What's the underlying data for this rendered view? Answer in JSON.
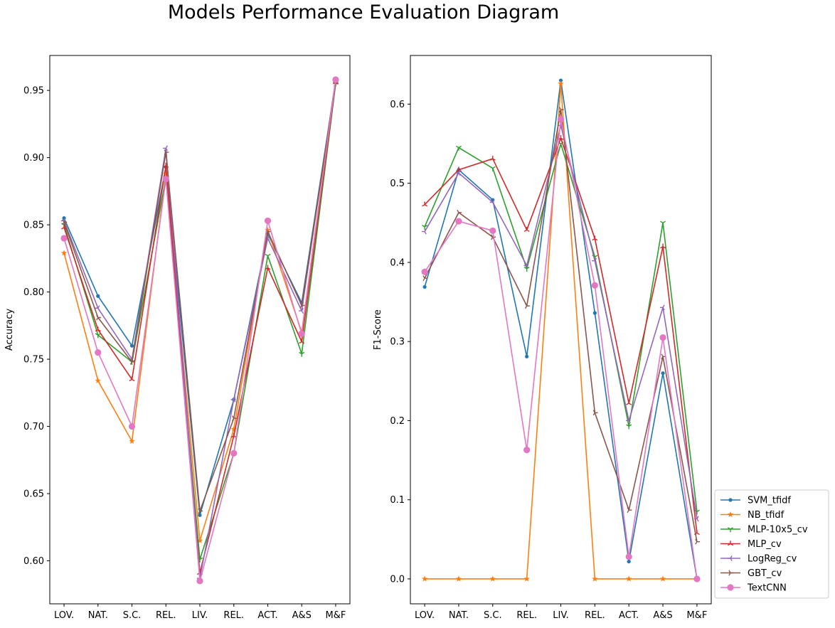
{
  "figure": {
    "title": "Models Performance Evaluation Diagram"
  },
  "colors": {
    "SVM_tfidf": "#1f77b4",
    "NB_tfidf": "#ff7f0e",
    "MLP-10x5_cv": "#2ca02c",
    "MLP_cv": "#d62728",
    "LogReg_cv": "#9467bd",
    "GBT_cv": "#8c564b",
    "TextCNN": "#e377c2"
  },
  "legend": {
    "placement": "lower-right outside",
    "entries": [
      "SVM_tfidf",
      "NB_tfidf",
      "MLP-10x5_cv",
      "MLP_cv",
      "LogReg_cv",
      "GBT_cv",
      "TextCNN"
    ]
  },
  "chart_data": [
    {
      "type": "line",
      "title": "",
      "xlabel": "",
      "ylabel": "Accuracy",
      "categories": [
        "LOV.",
        "NAT.",
        "S.C.",
        "REL.",
        "LIV.",
        "REL.",
        "ACT.",
        "A&S",
        "M&F"
      ],
      "ylim": [
        0.568,
        0.976
      ],
      "yticks": [
        0.6,
        0.65,
        0.7,
        0.75,
        0.8,
        0.85,
        0.9,
        0.95
      ],
      "ytick_labels": [
        "0.60",
        "0.65",
        "0.70",
        "0.75",
        "0.80",
        "0.85",
        "0.90",
        "0.95"
      ],
      "grid": false,
      "series": [
        {
          "name": "SVM_tfidf",
          "marker": "dot",
          "values": [
            0.855,
            0.797,
            0.76,
            0.893,
            0.634,
            0.72,
            0.843,
            0.792,
            0.957
          ]
        },
        {
          "name": "NB_tfidf",
          "marker": "star",
          "values": [
            0.829,
            0.734,
            0.689,
            0.888,
            0.615,
            0.698,
            0.846,
            0.77,
            0.958
          ]
        },
        {
          "name": "MLP-10x5_cv",
          "marker": "tri_down",
          "values": [
            0.85,
            0.768,
            0.748,
            0.885,
            0.601,
            0.68,
            0.827,
            0.754,
            0.955
          ]
        },
        {
          "name": "MLP_cv",
          "marker": "tri_up",
          "values": [
            0.848,
            0.772,
            0.735,
            0.894,
            0.591,
            0.693,
            0.818,
            0.763,
            0.956
          ]
        },
        {
          "name": "LogReg_cv",
          "marker": "tri_left",
          "values": [
            0.853,
            0.788,
            0.75,
            0.907,
            0.587,
            0.72,
            0.84,
            0.786,
            0.958
          ]
        },
        {
          "name": "GBT_cv",
          "marker": "tri_right",
          "values": [
            0.852,
            0.781,
            0.748,
            0.904,
            0.637,
            0.706,
            0.845,
            0.79,
            0.955
          ]
        },
        {
          "name": "TextCNN",
          "marker": "circle",
          "values": [
            0.84,
            0.755,
            0.7,
            0.884,
            0.585,
            0.68,
            0.853,
            0.769,
            0.958
          ]
        }
      ]
    },
    {
      "type": "line",
      "title": "",
      "xlabel": "",
      "ylabel": "F1-Score",
      "categories": [
        "LOV.",
        "NAT.",
        "S.C.",
        "REL.",
        "LIV.",
        "REL.",
        "ACT.",
        "A&S",
        "M&F"
      ],
      "ylim": [
        -0.0315,
        0.6615
      ],
      "yticks": [
        0.0,
        0.1,
        0.2,
        0.3,
        0.4,
        0.5,
        0.6
      ],
      "ytick_labels": [
        "0.0",
        "0.1",
        "0.2",
        "0.3",
        "0.4",
        "0.5",
        "0.6"
      ],
      "grid": false,
      "series": [
        {
          "name": "SVM_tfidf",
          "marker": "dot",
          "values": [
            0.369,
            0.517,
            0.479,
            0.281,
            0.63,
            0.336,
            0.022,
            0.26,
            0.0
          ]
        },
        {
          "name": "NB_tfidf",
          "marker": "star",
          "values": [
            0.0,
            0.0,
            0.0,
            0.0,
            0.626,
            0.0,
            0.0,
            0.0,
            0.0
          ]
        },
        {
          "name": "MLP-10x5_cv",
          "marker": "tri_down",
          "values": [
            0.445,
            0.545,
            0.519,
            0.392,
            0.55,
            0.407,
            0.193,
            0.45,
            0.085
          ]
        },
        {
          "name": "MLP_cv",
          "marker": "tri_up",
          "values": [
            0.473,
            0.517,
            0.531,
            0.441,
            0.557,
            0.43,
            0.222,
            0.42,
            0.058
          ]
        },
        {
          "name": "LogReg_cv",
          "marker": "tri_left",
          "values": [
            0.439,
            0.513,
            0.476,
            0.396,
            0.573,
            0.402,
            0.2,
            0.343,
            0.076
          ]
        },
        {
          "name": "GBT_cv",
          "marker": "tri_right",
          "values": [
            0.38,
            0.463,
            0.432,
            0.345,
            0.593,
            0.21,
            0.087,
            0.281,
            0.047
          ]
        },
        {
          "name": "TextCNN",
          "marker": "circle",
          "values": [
            0.388,
            0.452,
            0.44,
            0.163,
            0.581,
            0.371,
            0.028,
            0.305,
            0.0
          ]
        }
      ]
    }
  ]
}
